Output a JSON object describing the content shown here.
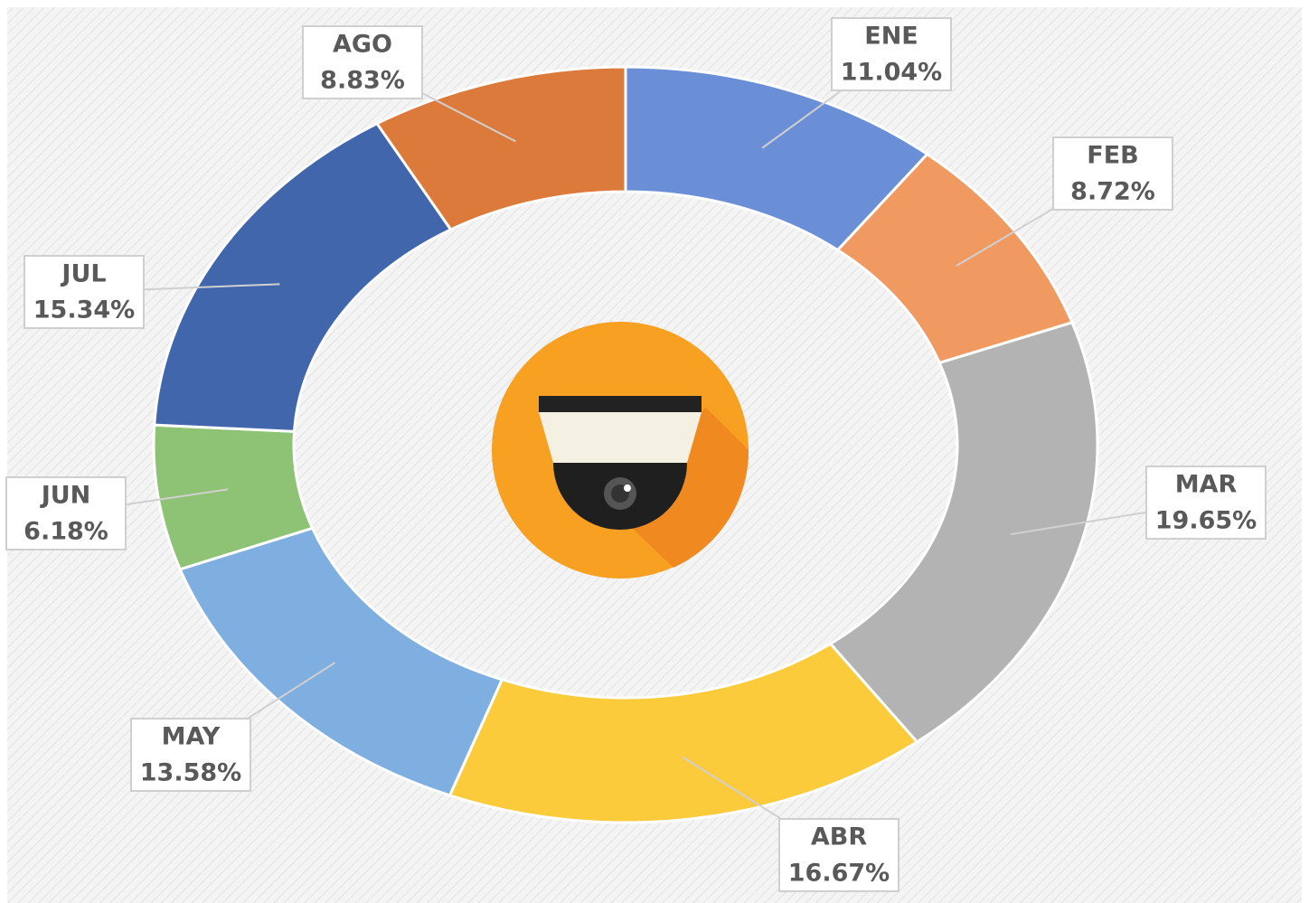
{
  "chart_data": {
    "type": "donut",
    "categories": [
      "ENE",
      "FEB",
      "MAR",
      "ABR",
      "MAY",
      "JUN",
      "JUL",
      "AGO"
    ],
    "values": [
      11.04,
      8.72,
      19.65,
      16.67,
      13.58,
      6.18,
      15.34,
      8.83
    ],
    "value_labels": [
      "11.04%",
      "8.72%",
      "19.65%",
      "16.67%",
      "13.58%",
      "6.18%",
      "15.34%",
      "8.83%"
    ],
    "colors": [
      "#6a8fd6",
      "#f09a62",
      "#b3b3b3",
      "#fccb3c",
      "#7faee0",
      "#8ec274",
      "#4166ac",
      "#dc7a3c"
    ]
  }
}
